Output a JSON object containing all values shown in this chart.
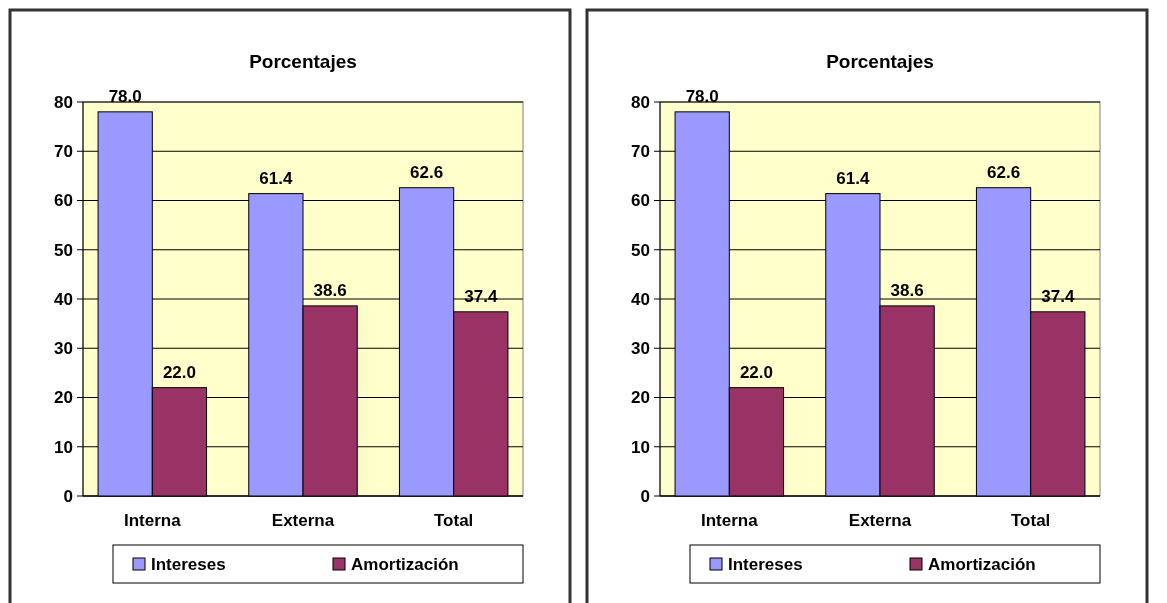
{
  "chart_data": [
    {
      "type": "bar",
      "title": "Porcentajes",
      "categories": [
        "Interna",
        "Externa",
        "Total"
      ],
      "series": [
        {
          "name": "Intereses",
          "color": "#9999ff",
          "values": [
            78.0,
            61.4,
            62.6
          ],
          "value_labels": [
            "78.0",
            "61.4",
            "62.6"
          ]
        },
        {
          "name": "Amortización",
          "color": "#993366",
          "values": [
            22.0,
            38.6,
            37.4
          ],
          "value_labels": [
            "22.0",
            "38.6",
            "37.4"
          ]
        }
      ],
      "ylim": [
        0,
        80
      ],
      "yticks": [
        0,
        10,
        20,
        30,
        40,
        50,
        60,
        70,
        80
      ],
      "grid": "y",
      "legend": "bottom"
    },
    {
      "type": "bar",
      "title": "Porcentajes",
      "categories": [
        "Interna",
        "Externa",
        "Total"
      ],
      "series": [
        {
          "name": "Intereses",
          "color": "#9999ff",
          "values": [
            78.0,
            61.4,
            62.6
          ],
          "value_labels": [
            "78.0",
            "61.4",
            "62.6"
          ]
        },
        {
          "name": "Amortización",
          "color": "#993366",
          "values": [
            22.0,
            38.6,
            37.4
          ],
          "value_labels": [
            "22.0",
            "38.6",
            "37.4"
          ]
        }
      ],
      "ylim": [
        0,
        80
      ],
      "yticks": [
        0,
        10,
        20,
        30,
        40,
        50,
        60,
        70,
        80
      ],
      "grid": "y",
      "legend": "bottom"
    }
  ]
}
